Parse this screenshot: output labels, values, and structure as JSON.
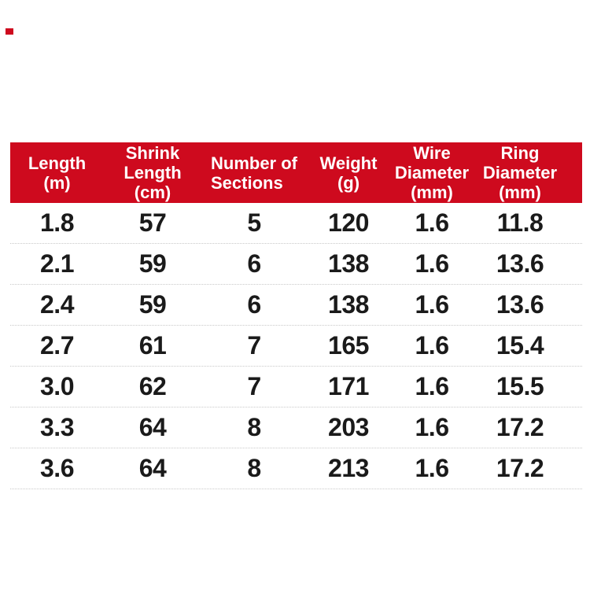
{
  "page": {
    "background_color": "#ffffff"
  },
  "decor": {
    "corner_mark_color": "#ce0a1e"
  },
  "spec_table": {
    "header_bg_color": "#ce0a1e",
    "header_text_color": "#ffffff",
    "row_text_color": "#1a1a1a",
    "separator_color": "#c9c9c9",
    "columns": [
      {
        "id": "length",
        "lines": [
          "Length",
          "(m)"
        ]
      },
      {
        "id": "shrink-length",
        "lines": [
          "Shrink",
          "Length",
          "(cm)"
        ]
      },
      {
        "id": "sections",
        "lines": [
          "Number of",
          "Sections"
        ]
      },
      {
        "id": "weight",
        "lines": [
          "Weight",
          "(g)"
        ]
      },
      {
        "id": "wire-diameter",
        "lines": [
          "Wire",
          "Diameter",
          "(mm)"
        ]
      },
      {
        "id": "ring-diameter",
        "lines": [
          "Ring",
          "Diameter",
          "(mm)"
        ]
      }
    ],
    "rows": [
      [
        "1.8",
        "57",
        "5",
        "120",
        "1.6",
        "11.8"
      ],
      [
        "2.1",
        "59",
        "6",
        "138",
        "1.6",
        "13.6"
      ],
      [
        "2.4",
        "59",
        "6",
        "138",
        "1.6",
        "13.6"
      ],
      [
        "2.7",
        "61",
        "7",
        "165",
        "1.6",
        "15.4"
      ],
      [
        "3.0",
        "62",
        "7",
        "171",
        "1.6",
        "15.5"
      ],
      [
        "3.3",
        "64",
        "8",
        "203",
        "1.6",
        "17.2"
      ],
      [
        "3.6",
        "64",
        "8",
        "213",
        "1.6",
        "17.2"
      ]
    ]
  },
  "chart_data": {
    "type": "table",
    "title": "",
    "columns": [
      "Length (m)",
      "Shrink Length (cm)",
      "Number of Sections",
      "Weight (g)",
      "Wire Diameter (mm)",
      "Ring Diameter (mm)"
    ],
    "rows": [
      [
        1.8,
        57,
        5,
        120,
        1.6,
        11.8
      ],
      [
        2.1,
        59,
        6,
        138,
        1.6,
        13.6
      ],
      [
        2.4,
        59,
        6,
        138,
        1.6,
        13.6
      ],
      [
        2.7,
        61,
        7,
        165,
        1.6,
        15.4
      ],
      [
        3.0,
        62,
        7,
        171,
        1.6,
        15.5
      ],
      [
        3.3,
        64,
        8,
        203,
        1.6,
        17.2
      ],
      [
        3.6,
        64,
        8,
        213,
        1.6,
        17.2
      ]
    ]
  }
}
